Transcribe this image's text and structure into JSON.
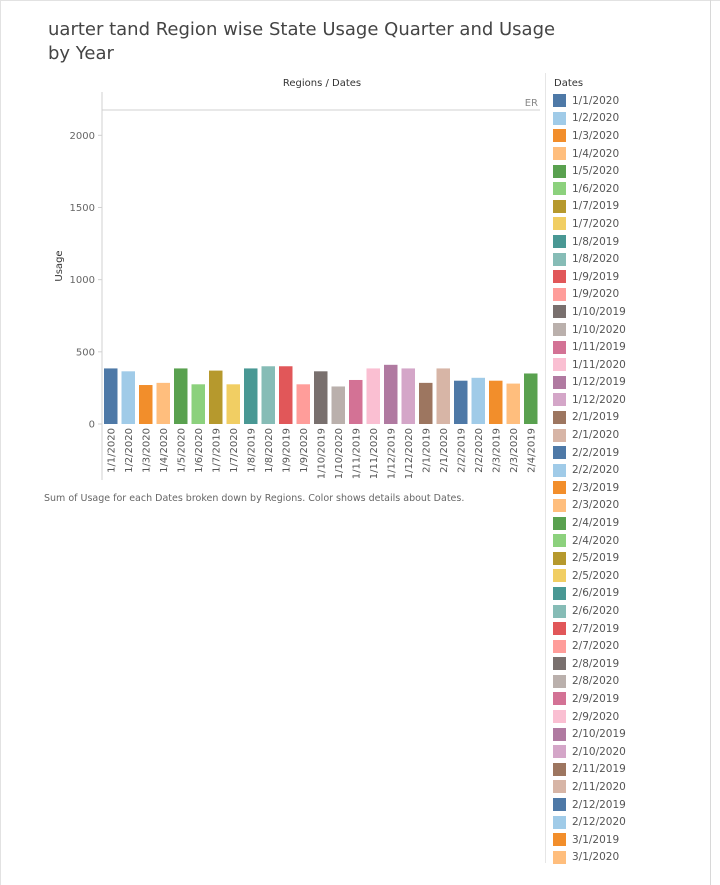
{
  "page": {
    "title": "uarter tand Region wise State Usage Quarter and Usage by Year",
    "caption": "Sum of Usage for each Dates broken down by Regions.  Color shows details about Dates."
  },
  "chart_data": {
    "type": "bar",
    "header": "Regions / Dates",
    "region_label": "ER",
    "ylabel": "Usage",
    "xlabel": "",
    "ylim": [
      0,
      2300
    ],
    "yticks": [
      0,
      500,
      1000,
      1500,
      2000
    ],
    "grid": false,
    "legend_title": "Dates",
    "legend_position": "right",
    "categories": [
      "1/1/2020",
      "1/2/2020",
      "1/3/2020",
      "1/4/2020",
      "1/5/2020",
      "1/6/2020",
      "1/7/2019",
      "1/7/2020",
      "1/8/2019",
      "1/8/2020",
      "1/9/2019",
      "1/9/2020",
      "1/10/2019",
      "1/10/2020",
      "1/11/2019",
      "1/11/2020",
      "1/12/2019",
      "1/12/2020",
      "2/1/2019",
      "2/1/2020",
      "2/2/2019",
      "2/2/2020",
      "2/3/2019",
      "2/3/2020",
      "2/4/2019"
    ],
    "values": [
      385,
      365,
      270,
      285,
      385,
      275,
      370,
      275,
      385,
      400,
      400,
      275,
      365,
      260,
      305,
      385,
      410,
      385,
      285,
      385,
      300,
      320,
      300,
      280,
      350
    ],
    "colors": [
      "#4e79a7",
      "#a0cbe8",
      "#f28e2b",
      "#ffbe7d",
      "#59a14f",
      "#8cd17d",
      "#b6992d",
      "#f1ce63",
      "#499894",
      "#86bcb6",
      "#e15759",
      "#ff9d9a",
      "#79706e",
      "#bab0ac",
      "#d37295",
      "#fabfd2",
      "#b07aa1",
      "#d4a6c8",
      "#9d7660",
      "#d7b5a6",
      "#4e79a7",
      "#a0cbe8",
      "#f28e2b",
      "#ffbe7d",
      "#59a14f"
    ]
  },
  "legend": {
    "items": [
      {
        "label": "1/1/2020",
        "color": "#4e79a7"
      },
      {
        "label": "1/2/2020",
        "color": "#a0cbe8"
      },
      {
        "label": "1/3/2020",
        "color": "#f28e2b"
      },
      {
        "label": "1/4/2020",
        "color": "#ffbe7d"
      },
      {
        "label": "1/5/2020",
        "color": "#59a14f"
      },
      {
        "label": "1/6/2020",
        "color": "#8cd17d"
      },
      {
        "label": "1/7/2019",
        "color": "#b6992d"
      },
      {
        "label": "1/7/2020",
        "color": "#f1ce63"
      },
      {
        "label": "1/8/2019",
        "color": "#499894"
      },
      {
        "label": "1/8/2020",
        "color": "#86bcb6"
      },
      {
        "label": "1/9/2019",
        "color": "#e15759"
      },
      {
        "label": "1/9/2020",
        "color": "#ff9d9a"
      },
      {
        "label": "1/10/2019",
        "color": "#79706e"
      },
      {
        "label": "1/10/2020",
        "color": "#bab0ac"
      },
      {
        "label": "1/11/2019",
        "color": "#d37295"
      },
      {
        "label": "1/11/2020",
        "color": "#fabfd2"
      },
      {
        "label": "1/12/2019",
        "color": "#b07aa1"
      },
      {
        "label": "1/12/2020",
        "color": "#d4a6c8"
      },
      {
        "label": "2/1/2019",
        "color": "#9d7660"
      },
      {
        "label": "2/1/2020",
        "color": "#d7b5a6"
      },
      {
        "label": "2/2/2019",
        "color": "#4e79a7"
      },
      {
        "label": "2/2/2020",
        "color": "#a0cbe8"
      },
      {
        "label": "2/3/2019",
        "color": "#f28e2b"
      },
      {
        "label": "2/3/2020",
        "color": "#ffbe7d"
      },
      {
        "label": "2/4/2019",
        "color": "#59a14f"
      },
      {
        "label": "2/4/2020",
        "color": "#8cd17d"
      },
      {
        "label": "2/5/2019",
        "color": "#b6992d"
      },
      {
        "label": "2/5/2020",
        "color": "#f1ce63"
      },
      {
        "label": "2/6/2019",
        "color": "#499894"
      },
      {
        "label": "2/6/2020",
        "color": "#86bcb6"
      },
      {
        "label": "2/7/2019",
        "color": "#e15759"
      },
      {
        "label": "2/7/2020",
        "color": "#ff9d9a"
      },
      {
        "label": "2/8/2019",
        "color": "#79706e"
      },
      {
        "label": "2/8/2020",
        "color": "#bab0ac"
      },
      {
        "label": "2/9/2019",
        "color": "#d37295"
      },
      {
        "label": "2/9/2020",
        "color": "#fabfd2"
      },
      {
        "label": "2/10/2019",
        "color": "#b07aa1"
      },
      {
        "label": "2/10/2020",
        "color": "#d4a6c8"
      },
      {
        "label": "2/11/2019",
        "color": "#9d7660"
      },
      {
        "label": "2/11/2020",
        "color": "#d7b5a6"
      },
      {
        "label": "2/12/2019",
        "color": "#4e79a7"
      },
      {
        "label": "2/12/2020",
        "color": "#a0cbe8"
      },
      {
        "label": "3/1/2019",
        "color": "#f28e2b"
      },
      {
        "label": "3/1/2020",
        "color": "#ffbe7d"
      }
    ]
  }
}
